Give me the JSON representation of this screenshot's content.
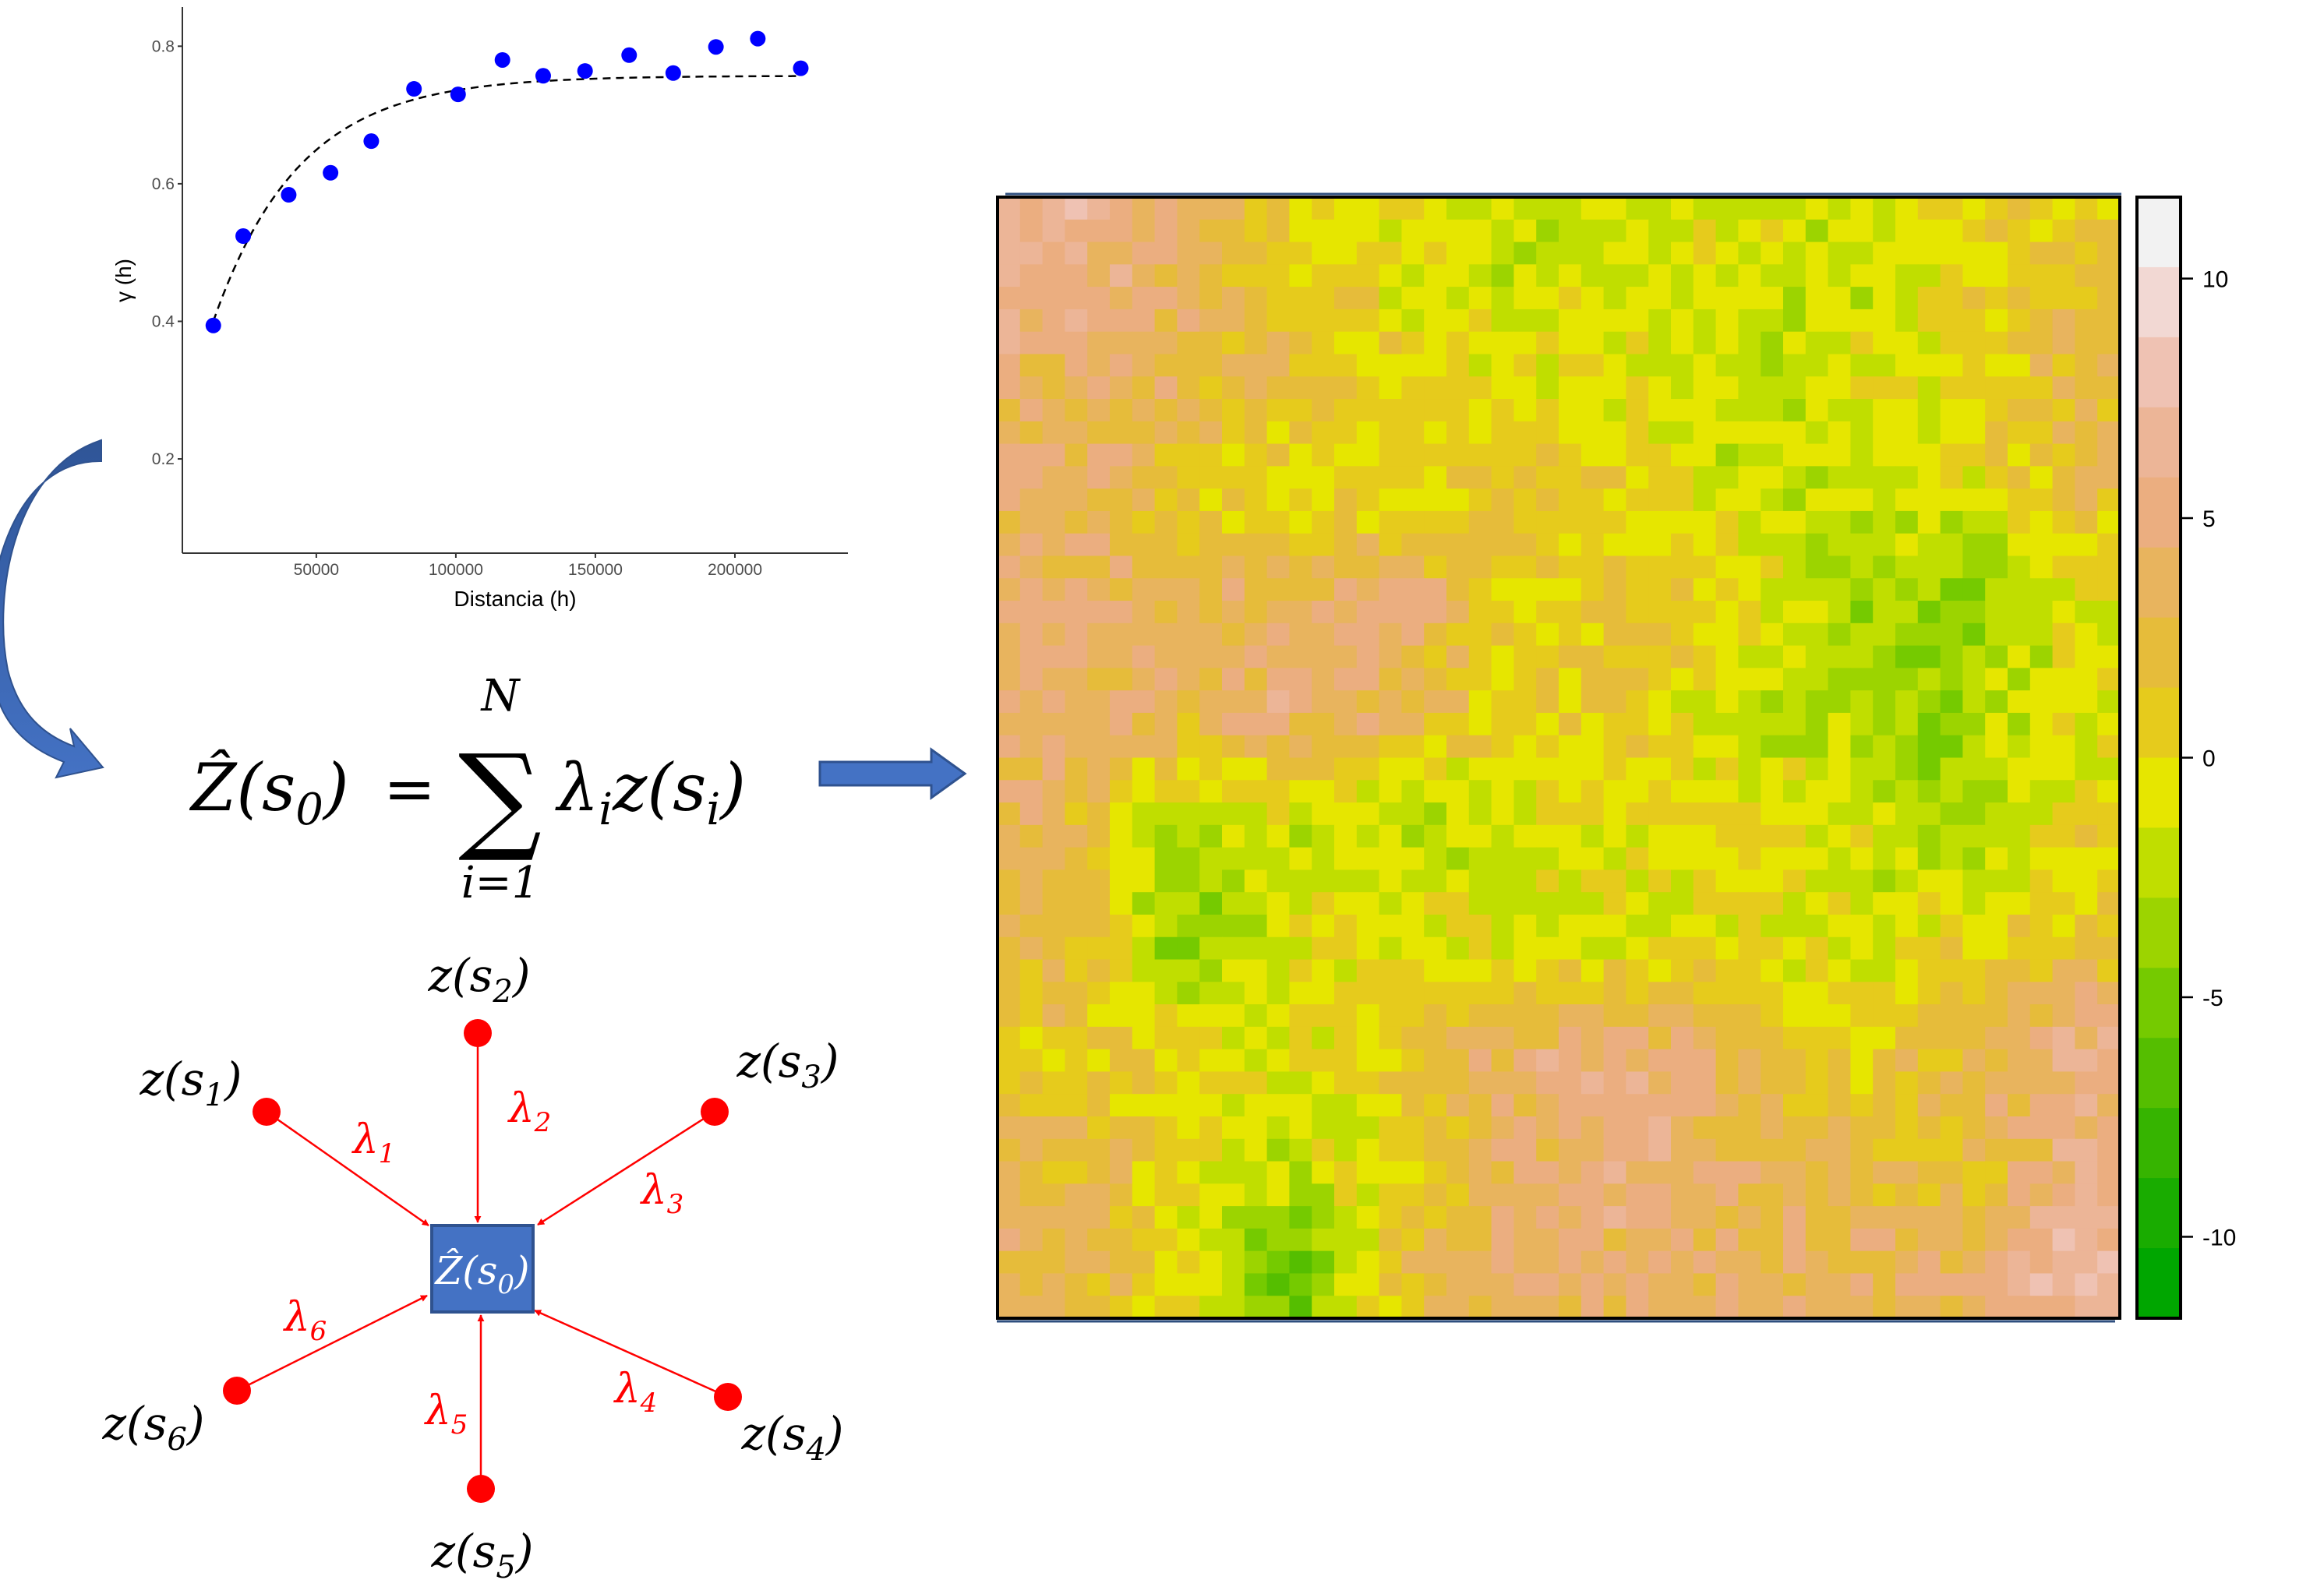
{
  "variogram": {
    "chart_data": {
      "type": "scatter",
      "xlabel": "Distancia (h)",
      "ylabel": "γ (h)",
      "xlim": [
        2000,
        240500
      ],
      "ylim": [
        0.063,
        0.857
      ],
      "xticks": [
        50000,
        100000,
        150000,
        200000
      ],
      "xtick_labels": [
        "50000",
        "100000",
        "150000",
        "200000"
      ],
      "yticks": [
        0.2,
        0.4,
        0.6,
        0.8
      ],
      "ytick_labels": [
        "0.2",
        "0.4",
        "0.6",
        "0.8"
      ],
      "grid": false,
      "points": {
        "x": [
          13100,
          23800,
          40100,
          55100,
          69700,
          85000,
          100800,
          116700,
          131300,
          146300,
          162100,
          177900,
          193200,
          208200,
          223600
        ],
        "y": [
          0.394,
          0.524,
          0.584,
          0.616,
          0.662,
          0.738,
          0.73,
          0.78,
          0.757,
          0.764,
          0.787,
          0.761,
          0.799,
          0.811,
          0.768
        ]
      },
      "model": {
        "type": "exponential",
        "nugget": 0.211,
        "partial_sill": 0.546,
        "range": 30800,
        "xrange": [
          13100,
          223600
        ],
        "style": "dashed"
      },
      "point_color": "#0000ff"
    }
  },
  "formula": {
    "lhs": "Ẑ(s",
    "lhs_sub": "0",
    "lhs_close": ")",
    "equals": "=",
    "sigma": "∑",
    "upper": "N",
    "lower": "i=1",
    "lambda": "λ",
    "lambda_sub": "i",
    "z": "z(s",
    "z_sub": "i",
    "z_close": ")"
  },
  "diagram": {
    "center": {
      "base": "Ẑ(s",
      "sub": "0",
      "close": ")"
    },
    "points": [
      {
        "base": "z(s",
        "sub": "1",
        "close": ")",
        "weight": "λ",
        "weight_sub": "1"
      },
      {
        "base": "z(s",
        "sub": "2",
        "close": ")",
        "weight": "λ",
        "weight_sub": "2"
      },
      {
        "base": "z(s",
        "sub": "3",
        "close": ")",
        "weight": "λ",
        "weight_sub": "3"
      },
      {
        "base": "z(s",
        "sub": "4",
        "close": ")",
        "weight": "λ",
        "weight_sub": "4"
      },
      {
        "base": "z(s",
        "sub": "5",
        "close": ")",
        "weight": "λ",
        "weight_sub": "5"
      },
      {
        "base": "z(s",
        "sub": "6",
        "close": ")",
        "weight": "λ",
        "weight_sub": "6"
      }
    ],
    "point_color": "#ff0000",
    "box_color": "#4472c4"
  },
  "heatmap": {
    "chart_data": {
      "type": "heatmap",
      "rows": 50,
      "cols": 50,
      "coarse_values_10x10": [
        [
          6,
          4,
          1,
          -1,
          -2,
          -2,
          -1,
          -2,
          0,
          1
        ],
        [
          4,
          3,
          3,
          0,
          -1,
          0,
          -3,
          -1,
          0,
          3
        ],
        [
          4,
          1,
          -1,
          0,
          2,
          0,
          -1,
          -2,
          -1,
          2
        ],
        [
          4,
          3,
          4,
          5,
          0,
          2,
          0,
          -3,
          -4,
          -1
        ],
        [
          5,
          3,
          5,
          3,
          0,
          1,
          -2,
          -3,
          -3,
          -1
        ],
        [
          3,
          -3,
          -2,
          -3,
          -1,
          0,
          0,
          -1,
          -4,
          0
        ],
        [
          3,
          -4,
          -1,
          0,
          -1,
          -2,
          0,
          -2,
          0,
          1
        ],
        [
          1,
          0,
          -1,
          1,
          4,
          6,
          3,
          0,
          3,
          6
        ],
        [
          3,
          0,
          -2,
          0,
          4,
          5,
          3,
          3,
          1,
          5
        ],
        [
          3,
          0,
          -6,
          2,
          4,
          4,
          4,
          3,
          4,
          7
        ]
      ],
      "colorbar": {
        "range": [
          -11.7,
          11.7
        ],
        "ticks": [
          10,
          5,
          0,
          -5,
          -10
        ],
        "tick_labels": [
          "10",
          "5",
          "0",
          "-5",
          "-10"
        ],
        "colors_top_to_bottom": [
          "#f2f2f2",
          "#f2d8d3",
          "#efc2b3",
          "#ecb597",
          "#ebae80",
          "#e8b45e",
          "#e6bc3a",
          "#e6cb1c",
          "#e6e600",
          "#c0de00",
          "#9cd400",
          "#75ca00",
          "#55be00",
          "#36b400",
          "#19ac00",
          "#00a600"
        ]
      }
    }
  },
  "arrow_color": "#4472c4"
}
